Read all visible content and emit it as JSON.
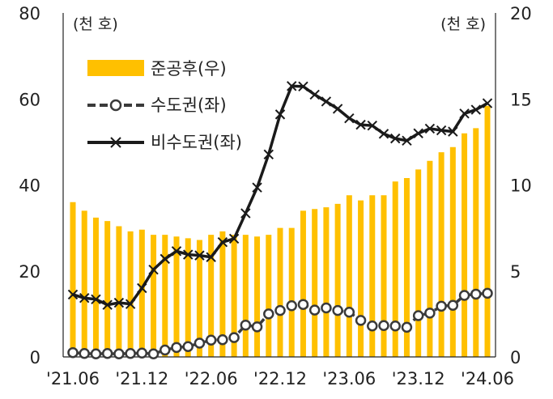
{
  "chart_data": {
    "type": "bar+line",
    "title": "",
    "y_left": {
      "unit_label": "(천 호)",
      "ylim": [
        0,
        80
      ],
      "ticks": [
        0,
        20,
        40,
        60,
        80
      ]
    },
    "y_right": {
      "unit_label": "(천 호)",
      "ylim": [
        0,
        20
      ],
      "ticks": [
        0,
        5,
        10,
        15,
        20
      ]
    },
    "x_tick_labels": [
      "'21.06",
      "'21.12",
      "'22.06",
      "'22.12",
      "'23.06",
      "'23.12",
      "'24.06"
    ],
    "x_tick_positions": [
      0,
      6,
      12,
      18,
      24,
      30,
      36
    ],
    "months": [
      "'21.06",
      "'21.07",
      "'21.08",
      "'21.09",
      "'21.10",
      "'21.11",
      "'21.12",
      "'22.01",
      "'22.02",
      "'22.03",
      "'22.04",
      "'22.05",
      "'22.06",
      "'22.07",
      "'22.08",
      "'22.09",
      "'22.10",
      "'22.11",
      "'22.12",
      "'23.01",
      "'23.02",
      "'23.03",
      "'23.04",
      "'23.05",
      "'23.06",
      "'23.07",
      "'23.08",
      "'23.09",
      "'23.10",
      "'23.11",
      "'23.12",
      "'24.01",
      "'24.02",
      "'24.03",
      "'24.04",
      "'24.05",
      "'24.06"
    ],
    "series": [
      {
        "name": "준공후(우)",
        "kind": "bar",
        "axis": "right",
        "color": "#FFC000",
        "values": [
          9.0,
          8.5,
          8.1,
          7.9,
          7.6,
          7.3,
          7.4,
          7.1,
          7.1,
          7.0,
          6.9,
          6.8,
          7.1,
          7.3,
          7.1,
          7.1,
          7.0,
          7.1,
          7.5,
          7.5,
          8.5,
          8.6,
          8.7,
          8.9,
          9.4,
          9.1,
          9.4,
          9.4,
          10.2,
          10.4,
          10.9,
          11.4,
          11.9,
          12.2,
          13.0,
          13.3,
          14.6
        ]
      },
      {
        "name": "수도권(좌)",
        "kind": "line",
        "style": "dashed-circle",
        "axis": "left",
        "color": "#3a3a3a",
        "values": [
          1.0,
          0.8,
          0.7,
          0.8,
          0.7,
          0.8,
          0.9,
          0.7,
          1.6,
          2.2,
          2.4,
          3.2,
          3.9,
          4.0,
          4.5,
          7.4,
          7.0,
          10.0,
          10.8,
          11.9,
          12.2,
          10.9,
          11.4,
          10.8,
          10.4,
          8.5,
          7.2,
          7.3,
          7.2,
          6.9,
          9.6,
          10.2,
          11.8,
          12.0,
          14.3,
          14.6,
          14.8
        ]
      },
      {
        "name": "비수도권(좌)",
        "kind": "line",
        "style": "solid-x",
        "axis": "left",
        "color": "#1a1a1a",
        "values": [
          14.5,
          13.7,
          13.4,
          12.1,
          12.6,
          12.3,
          16.0,
          20.3,
          22.8,
          24.6,
          23.8,
          23.6,
          23.2,
          26.7,
          27.5,
          33.4,
          39.4,
          47.1,
          56.4,
          63.0,
          62.9,
          61.0,
          59.4,
          57.7,
          55.5,
          54.0,
          53.8,
          51.9,
          50.8,
          50.3,
          52.0,
          53.1,
          52.7,
          52.4,
          56.6,
          57.5,
          59.0
        ]
      }
    ],
    "legend_position": "top-left"
  }
}
